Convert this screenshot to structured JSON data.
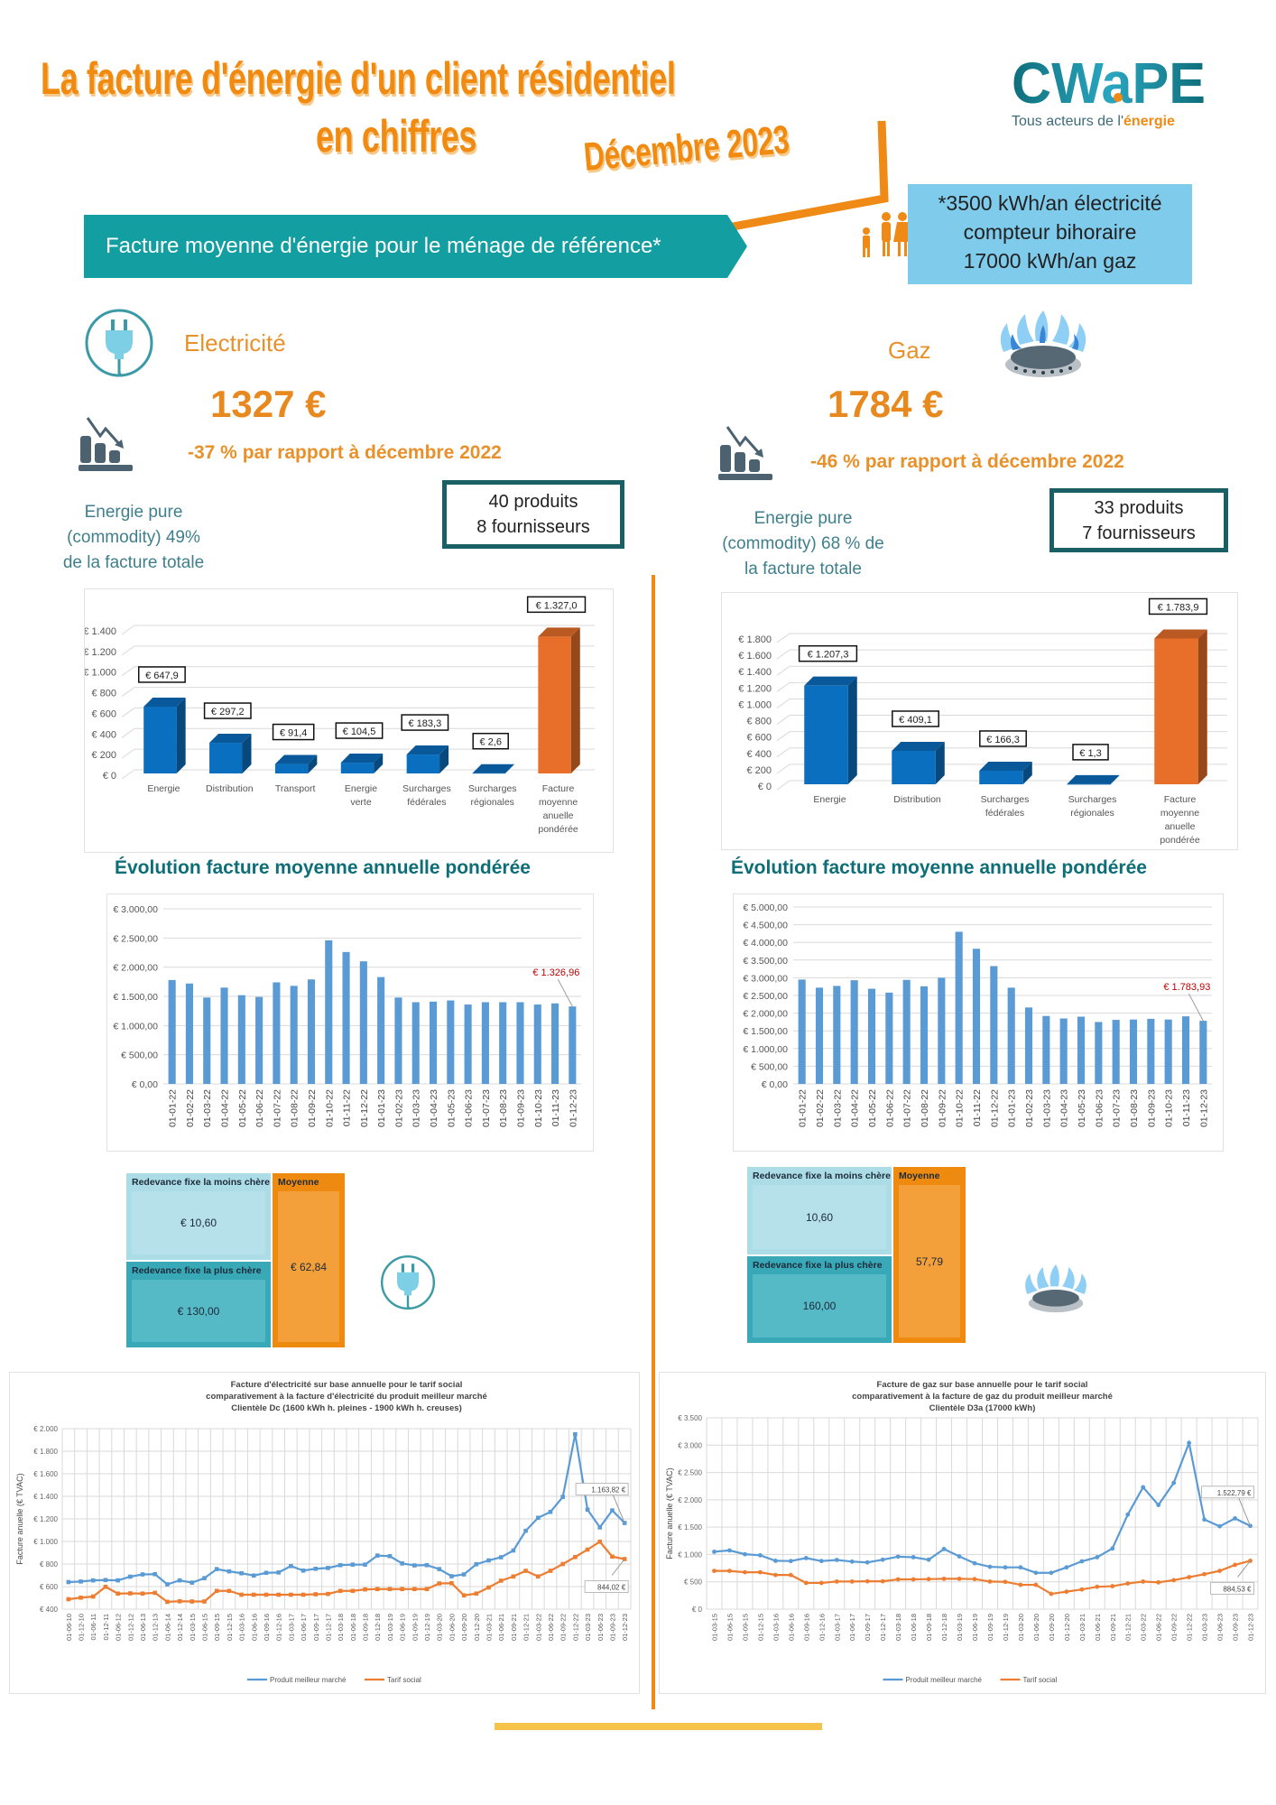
{
  "header": {
    "title_line1": "La facture d'énergie d'un client résidentiel",
    "title_line2": "en chiffres",
    "date": "Décembre 2023",
    "logo_text": "CWaPE",
    "logo_tagline_prefix": "Tous acteurs de l'",
    "logo_tagline_highlight": "énergie"
  },
  "banner": "Facture moyenne d'énergie pour le ménage de référence*",
  "reference": {
    "line1": "*3500 kWh/an électricité",
    "line2": "compteur bihoraire",
    "line3": "17000 kWh/an gaz"
  },
  "electricity": {
    "name": "Electricité",
    "amount": "1327 €",
    "delta": "-37 %  par rapport à décembre 2022",
    "pure_line1": "Energie pure",
    "pure_line2": "(commodity)  49%",
    "pure_line3": "de la facture totale",
    "products": "40 produits",
    "suppliers": "8 fournisseurs",
    "evolution_title": "Évolution facture moyenne annuelle pondérée",
    "redevance": {
      "min_label": "Redevance fixe la moins chère",
      "min_value": "€ 10,60",
      "max_label": "Redevance fixe la plus chère",
      "max_value": "€ 130,00",
      "avg_label": "Moyenne",
      "avg_value": "€ 62,84"
    }
  },
  "gas": {
    "name": "Gaz",
    "amount": "1784 €",
    "delta": "-46 %  par rapport à décembre 2022",
    "pure_line1": "Energie pure",
    "pure_line2": "(commodity)  68 % de",
    "pure_line3": "la facture totale",
    "products": "33 produits",
    "suppliers": "7 fournisseurs",
    "evolution_title": "Évolution facture moyenne annuelle pondérée",
    "redevance": {
      "min_label": "Redevance fixe la moins chère",
      "min_value": "10,60",
      "max_label": "Redevance fixe la plus chère",
      "max_value": "160,00",
      "avg_label": "Moyenne",
      "avg_value": "57,79"
    }
  },
  "colors": {
    "orange": "#f08a10",
    "teal": "#139ea1",
    "bar_blue": "#0b6fc0",
    "bar_orange": "#e86f2a",
    "col_blue": "#5b9bd5",
    "line_blue": "#5b9bd5",
    "line_orange": "#ed7d31"
  },
  "chart_data": [
    {
      "id": "elec-breakdown",
      "type": "bar",
      "title": "",
      "categories": [
        "Energie",
        "Distribution",
        "Transport",
        "Energie\nverte",
        "Surcharges\nfédérales",
        "Surcharges\nrégionales",
        "Facture\nmoyenne\nanuelle\npondérée"
      ],
      "values": [
        647.9,
        297.2,
        91.4,
        104.5,
        183.3,
        2.6,
        1327.0
      ],
      "data_labels": [
        "€ 647,9",
        "€ 297,2",
        "€ 91,4",
        "€ 104,5",
        "€ 183,3",
        "€ 2,6",
        "€ 1.327,0"
      ],
      "highlight_last": true,
      "ylim": [
        0,
        1400
      ],
      "yticks": [
        0,
        200,
        400,
        600,
        800,
        1000,
        1200,
        1400
      ],
      "ytick_labels": [
        "€ 0",
        "€ 200",
        "€ 400",
        "€ 600",
        "€ 800",
        "€ 1.000",
        "€ 1.200",
        "€ 1.400"
      ],
      "grid": true
    },
    {
      "id": "gas-breakdown",
      "type": "bar",
      "title": "",
      "categories": [
        "Energie",
        "Distribution",
        "Surcharges\nfédérales",
        "Surcharges\nrégionales",
        "Facture\nmoyenne\nanuelle\npondérée"
      ],
      "values": [
        1207.3,
        409.1,
        166.3,
        1.3,
        1783.9
      ],
      "data_labels": [
        "€ 1.207,3",
        "€ 409,1",
        "€ 166,3",
        "€ 1,3",
        "€ 1.783,9"
      ],
      "highlight_last": true,
      "ylim": [
        0,
        1800
      ],
      "yticks": [
        0,
        200,
        400,
        600,
        800,
        1000,
        1200,
        1400,
        1600,
        1800
      ],
      "ytick_labels": [
        "€ 0",
        "€ 200",
        "€ 400",
        "€ 600",
        "€ 800",
        "€ 1.000",
        "€ 1.200",
        "€ 1.400",
        "€ 1.600",
        "€ 1.800"
      ],
      "grid": true
    },
    {
      "id": "elec-evolution",
      "type": "bar",
      "categories": [
        "01-01-22",
        "01-02-22",
        "01-03-22",
        "01-04-22",
        "01-05-22",
        "01-06-22",
        "01-07-22",
        "01-08-22",
        "01-09-22",
        "01-10-22",
        "01-11-22",
        "01-12-22",
        "01-01-23",
        "01-02-23",
        "01-03-23",
        "01-04-23",
        "01-05-23",
        "01-06-23",
        "01-07-23",
        "01-08-23",
        "01-09-23",
        "01-10-23",
        "01-11-23",
        "01-12-23"
      ],
      "values": [
        1780,
        1720,
        1480,
        1650,
        1520,
        1490,
        1740,
        1680,
        1790,
        2460,
        2260,
        2100,
        1830,
        1480,
        1400,
        1410,
        1430,
        1360,
        1400,
        1400,
        1400,
        1360,
        1380,
        1326.96
      ],
      "annotation": "€ 1.326,96",
      "ylim": [
        0,
        3000
      ],
      "yticks": [
        0,
        500,
        1000,
        1500,
        2000,
        2500,
        3000
      ],
      "ytick_labels": [
        "€ 0,00",
        "€ 500,00",
        "€ 1.000,00",
        "€ 1.500,00",
        "€ 2.000,00",
        "€ 2.500,00",
        "€ 3.000,00"
      ],
      "grid": true
    },
    {
      "id": "gas-evolution",
      "type": "bar",
      "categories": [
        "01-01-22",
        "01-02-22",
        "01-03-22",
        "01-04-22",
        "01-05-22",
        "01-06-22",
        "01-07-22",
        "01-08-22",
        "01-09-22",
        "01-10-22",
        "01-11-22",
        "01-12-22",
        "01-01-23",
        "01-02-23",
        "01-03-23",
        "01-04-23",
        "01-05-23",
        "01-06-23",
        "01-07-23",
        "01-08-23",
        "01-09-23",
        "01-10-23",
        "01-11-23",
        "01-12-23"
      ],
      "values": [
        2950,
        2720,
        2770,
        2930,
        2690,
        2580,
        2940,
        2760,
        3000,
        4300,
        3820,
        3330,
        2720,
        2160,
        1920,
        1850,
        1900,
        1750,
        1810,
        1820,
        1840,
        1820,
        1910,
        1783.93
      ],
      "annotation": "€ 1.783,93",
      "ylim": [
        0,
        5000
      ],
      "yticks": [
        0,
        500,
        1000,
        1500,
        2000,
        2500,
        3000,
        3500,
        4000,
        4500,
        5000
      ],
      "ytick_labels": [
        "€ 0,00",
        "€ 500,00",
        "€ 1.000,00",
        "€ 1.500,00",
        "€ 2.000,00",
        "€ 2.500,00",
        "€ 3.000,00",
        "€ 3.500,00",
        "€ 4.000,00",
        "€ 4.500,00",
        "€ 5.000,00"
      ],
      "grid": true
    },
    {
      "id": "elec-social",
      "type": "line",
      "title": [
        "Facture d'électricité sur base annuelle pour le tarif social",
        "comparativement  à la facture d'électricité du produit meilleur marché",
        "Clientèle Dc (1600 kWh h. pleines - 1900 kWh h. creuses)"
      ],
      "ylabel": "Facture anuelle (€ TVAC)",
      "x": [
        "01-06-10",
        "01-12-10",
        "01-06-11",
        "01-12-11",
        "01-06-12",
        "01-12-12",
        "01-06-13",
        "01-12-13",
        "01-06-14",
        "01-12-14",
        "01-03-15",
        "01-06-15",
        "01-09-15",
        "01-12-15",
        "01-03-16",
        "01-06-16",
        "01-09-16",
        "01-12-16",
        "01-03-17",
        "01-06-17",
        "01-09-17",
        "01-12-17",
        "01-03-18",
        "01-06-18",
        "01-09-18",
        "01-12-18",
        "01-03-19",
        "01-06-19",
        "01-09-19",
        "01-12-19",
        "01-03-20",
        "01-06-20",
        "01-09-20",
        "01-12-20",
        "01-03-21",
        "01-06-21",
        "01-09-21",
        "01-12-21",
        "01-03-22",
        "01-06-22",
        "01-09-22",
        "01-12-22",
        "01-03-23",
        "01-06-23",
        "01-09-23",
        "01-12-23"
      ],
      "series": [
        {
          "name": "Produit meilleur marché",
          "color": "#5b9bd5",
          "marker": "square",
          "values": [
            640,
            645,
            655,
            658,
            655,
            688,
            708,
            710,
            620,
            655,
            635,
            675,
            755,
            735,
            718,
            698,
            722,
            725,
            782,
            742,
            758,
            765,
            790,
            795,
            795,
            875,
            870,
            805,
            788,
            790,
            755,
            692,
            708,
            798,
            832,
            860,
            920,
            1095,
            1210,
            1262,
            1395,
            1950,
            1282,
            1125,
            1275,
            1163.82
          ],
          "end_label": "1.163,82 €"
        },
        {
          "name": "Tarif social",
          "color": "#ed7d31",
          "marker": "square",
          "values": [
            488,
            502,
            512,
            598,
            538,
            540,
            538,
            545,
            465,
            470,
            468,
            468,
            562,
            562,
            528,
            528,
            528,
            528,
            528,
            528,
            532,
            535,
            562,
            562,
            575,
            578,
            578,
            578,
            578,
            578,
            628,
            630,
            522,
            538,
            592,
            652,
            690,
            740,
            690,
            740,
            800,
            862,
            928,
            998,
            866,
            844.02
          ],
          "end_label": "844,02 €"
        }
      ],
      "ylim": [
        400,
        2000
      ],
      "yticks": [
        400,
        600,
        800,
        1000,
        1200,
        1400,
        1600,
        1800,
        2000
      ],
      "ytick_labels": [
        "€ 400",
        "€ 600",
        "€ 800",
        "€ 1.000",
        "€ 1.200",
        "€ 1.400",
        "€ 1.600",
        "€ 1.800",
        "€ 2.000"
      ],
      "legend": "bottom",
      "grid": true
    },
    {
      "id": "gas-social",
      "type": "line",
      "title": [
        "Facture de gaz sur base annuelle pour le tarif social",
        "comparativement  à la facture de gaz du produit meilleur marché",
        "Clientèle D3a (17000  kWh)"
      ],
      "ylabel": "Facture anuelle (€ TVAC)",
      "x": [
        "01-03-15",
        "01-06-15",
        "01-09-15",
        "01-12-15",
        "01-03-16",
        "01-06-16",
        "01-09-16",
        "01-12-16",
        "01-03-17",
        "01-06-17",
        "01-09-17",
        "01-12-17",
        "01-03-18",
        "01-06-18",
        "01-09-18",
        "01-12-18",
        "01-03-19",
        "01-06-19",
        "01-09-19",
        "01-12-19",
        "01-03-20",
        "01-06-20",
        "01-09-20",
        "01-12-20",
        "01-03-21",
        "01-06-21",
        "01-09-21",
        "01-12-21",
        "01-03-22",
        "01-06-22",
        "01-09-22",
        "01-12-22",
        "01-03-23",
        "01-06-23",
        "01-09-23",
        "01-12-23"
      ],
      "series": [
        {
          "name": "Produit meilleur marché",
          "color": "#5b9bd5",
          "marker": "circle",
          "values": [
            1050,
            1075,
            1005,
            985,
            885,
            880,
            935,
            880,
            900,
            870,
            855,
            905,
            960,
            950,
            905,
            1100,
            965,
            840,
            775,
            765,
            765,
            665,
            665,
            765,
            875,
            950,
            1110,
            1730,
            2230,
            1905,
            2310,
            3040,
            1640,
            1515,
            1660,
            1522.79
          ],
          "end_label": "1.522,79 €"
        },
        {
          "name": "Tarif social",
          "color": "#ed7d31",
          "marker": "circle",
          "values": [
            700,
            700,
            675,
            675,
            625,
            625,
            480,
            480,
            505,
            505,
            510,
            510,
            545,
            545,
            550,
            555,
            555,
            550,
            505,
            500,
            445,
            445,
            280,
            320,
            360,
            410,
            420,
            470,
            505,
            490,
            530,
            585,
            640,
            700,
            810,
            884.53
          ],
          "end_label": "884,53 €"
        }
      ],
      "ylim": [
        0,
        3500
      ],
      "yticks": [
        0,
        500,
        1000,
        1500,
        2000,
        2500,
        3000,
        3500
      ],
      "ytick_labels": [
        "€ 0",
        "€ 500",
        "€ 1.000",
        "€ 1.500",
        "€ 2.000",
        "€ 2.500",
        "€ 3.000",
        "€ 3.500"
      ],
      "legend": "bottom",
      "grid": true
    }
  ]
}
